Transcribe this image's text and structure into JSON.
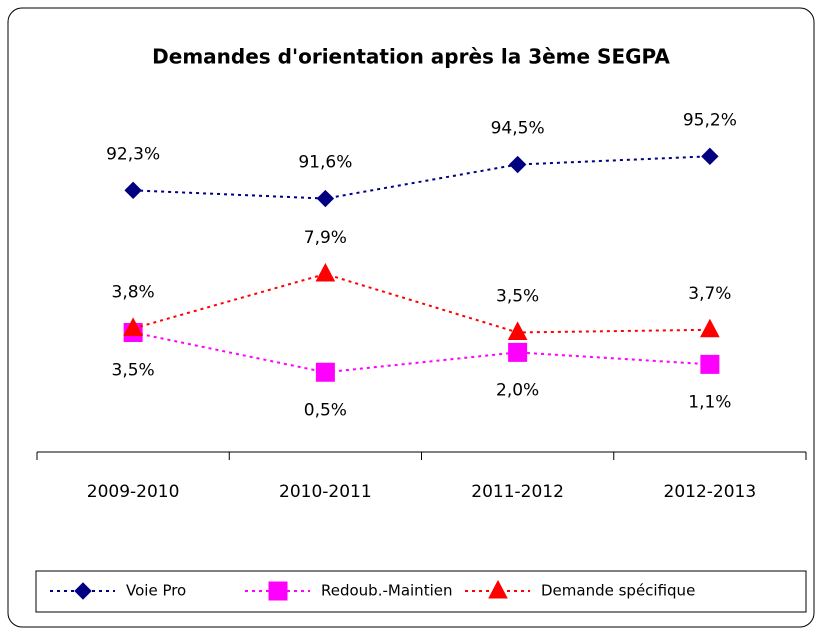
{
  "chart_data": {
    "type": "line",
    "title": "Demandes d'orientation après la 3ème SEGPA",
    "categories": [
      "2009-2010",
      "2010-2011",
      "2011-2012",
      "2012-2013"
    ],
    "ylim": [
      -5.5,
      21
    ],
    "y2lim": [
      70,
      100
    ],
    "series": [
      {
        "name": "Voie Pro",
        "color": "#000080",
        "marker": "diamond",
        "axis": "y2",
        "values": [
          92.3,
          91.6,
          94.5,
          95.2
        ],
        "value_labels": [
          "92,3%",
          "91,6%",
          "94,5%",
          "95,2%"
        ],
        "label_position": "above"
      },
      {
        "name": "Redoub.-Maintien",
        "color": "#ff00ff",
        "marker": "square",
        "values": [
          3.5,
          0.5,
          2.0,
          1.1
        ],
        "value_labels": [
          "3,5%",
          "0,5%",
          "2,0%",
          "1,1%"
        ],
        "label_position": "below"
      },
      {
        "name": "Demande spécifique",
        "color": "#ff0000",
        "marker": "triangle",
        "values": [
          3.8,
          7.9,
          3.5,
          3.7
        ],
        "value_labels": [
          "3,8%",
          "7,9%",
          "3,5%",
          "3,7%"
        ],
        "label_position": "above"
      }
    ],
    "legend": "bottom"
  }
}
